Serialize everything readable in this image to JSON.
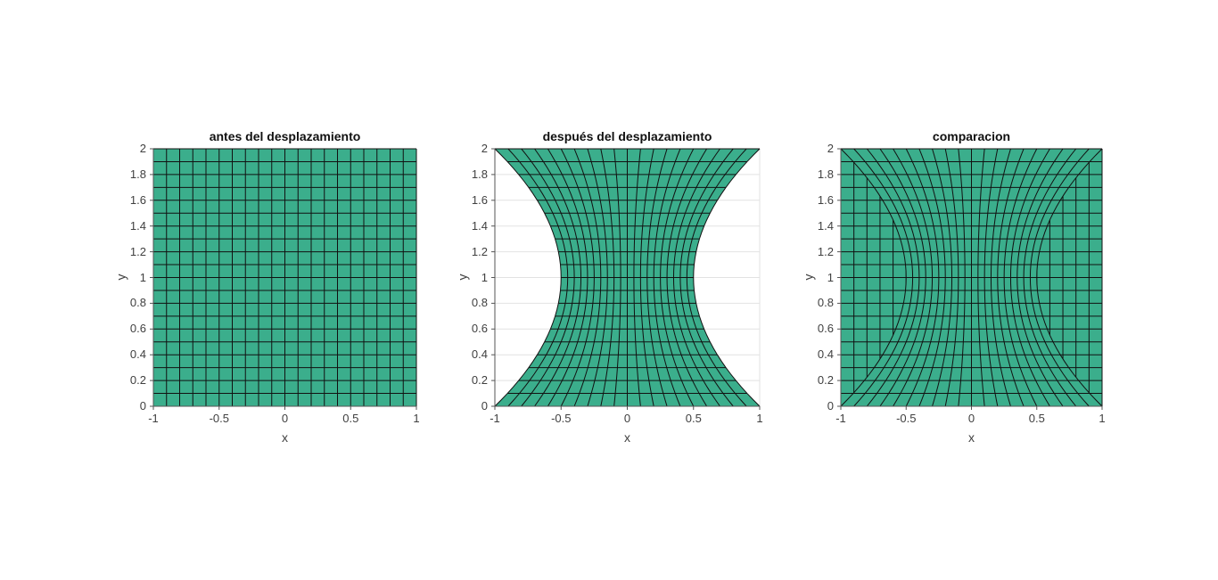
{
  "figure": {
    "background": "#ffffff",
    "style": {
      "face_color": "#3bae8c",
      "mesh_edge_color": "#111111",
      "grid_color": "#e2e2e2",
      "axis_color": "#555555",
      "tick_color": "#555555",
      "tick_label_color": "#404040",
      "title_color": "#111111"
    }
  },
  "chart_data": [
    {
      "type": "mesh",
      "title": "antes del desplazamiento",
      "xlabel": "x",
      "ylabel": "y",
      "xlim": [
        -1,
        1
      ],
      "ylim": [
        0,
        2
      ],
      "xticks": [
        -1,
        -0.5,
        0,
        0.5,
        1
      ],
      "xtick_labels": [
        "-1",
        "-0.5",
        "0",
        "0.5",
        "1"
      ],
      "yticks": [
        0,
        0.2,
        0.4,
        0.6,
        0.8,
        1,
        1.2,
        1.4,
        1.6,
        1.8,
        2
      ],
      "ytick_labels": [
        "0",
        "0.2",
        "0.4",
        "0.6",
        "0.8",
        "1",
        "1.2",
        "1.4",
        "1.6",
        "1.8",
        "2"
      ],
      "grid_divisions": {
        "nx": 20,
        "ny": 20
      },
      "meshes": [
        "original"
      ]
    },
    {
      "type": "mesh",
      "title": "después del desplazamiento",
      "xlabel": "x",
      "ylabel": "y",
      "xlim": [
        -1,
        1
      ],
      "ylim": [
        0,
        2
      ],
      "xticks": [
        -1,
        -0.5,
        0,
        0.5,
        1
      ],
      "xtick_labels": [
        "-1",
        "-0.5",
        "0",
        "0.5",
        "1"
      ],
      "yticks": [
        0,
        0.2,
        0.4,
        0.6,
        0.8,
        1,
        1.2,
        1.4,
        1.6,
        1.8,
        2
      ],
      "ytick_labels": [
        "0",
        "0.2",
        "0.4",
        "0.6",
        "0.8",
        "1",
        "1.2",
        "1.4",
        "1.6",
        "1.8",
        "2"
      ],
      "grid_divisions": {
        "nx": 20,
        "ny": 20
      },
      "meshes": [
        "deformed"
      ],
      "deformation": {
        "type": "horizontal_pinch",
        "formula": "x' = x*(0.5 + 0.5*(y-1)^2), y' = y",
        "waist_half_width": 0.5,
        "full_width_at_y": [
          0,
          2
        ]
      }
    },
    {
      "type": "mesh",
      "title": "comparacion",
      "xlabel": "x",
      "ylabel": "y",
      "xlim": [
        -1,
        1
      ],
      "ylim": [
        0,
        2
      ],
      "xticks": [
        -1,
        -0.5,
        0,
        0.5,
        1
      ],
      "xtick_labels": [
        "-1",
        "-0.5",
        "0",
        "0.5",
        "1"
      ],
      "yticks": [
        0,
        0.2,
        0.4,
        0.6,
        0.8,
        1,
        1.2,
        1.4,
        1.6,
        1.8,
        2
      ],
      "ytick_labels": [
        "0",
        "0.2",
        "0.4",
        "0.6",
        "0.8",
        "1",
        "1.2",
        "1.4",
        "1.6",
        "1.8",
        "2"
      ],
      "grid_divisions": {
        "nx": 20,
        "ny": 20
      },
      "meshes": [
        "original",
        "deformed"
      ],
      "deformation": {
        "type": "horizontal_pinch",
        "formula": "x' = x*(0.5 + 0.5*(y-1)^2), y' = y",
        "waist_half_width": 0.5,
        "full_width_at_y": [
          0,
          2
        ]
      }
    }
  ]
}
